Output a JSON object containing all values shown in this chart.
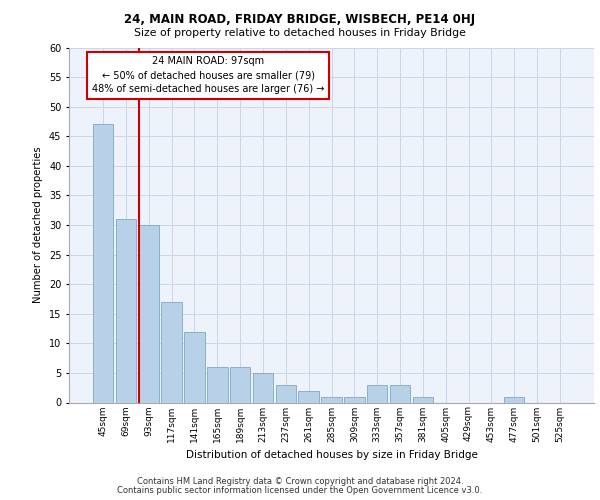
{
  "title1": "24, MAIN ROAD, FRIDAY BRIDGE, WISBECH, PE14 0HJ",
  "title2": "Size of property relative to detached houses in Friday Bridge",
  "xlabel": "Distribution of detached houses by size in Friday Bridge",
  "ylabel": "Number of detached properties",
  "footnote1": "Contains HM Land Registry data © Crown copyright and database right 2024.",
  "footnote2": "Contains public sector information licensed under the Open Government Licence v3.0.",
  "annotation_line1": "24 MAIN ROAD: 97sqm",
  "annotation_line2": "← 50% of detached houses are smaller (79)",
  "annotation_line3": "48% of semi-detached houses are larger (76) →",
  "bins": [
    "45sqm",
    "69sqm",
    "93sqm",
    "117sqm",
    "141sqm",
    "165sqm",
    "189sqm",
    "213sqm",
    "237sqm",
    "261sqm",
    "285sqm",
    "309sqm",
    "333sqm",
    "357sqm",
    "381sqm",
    "405sqm",
    "429sqm",
    "453sqm",
    "477sqm",
    "501sqm",
    "525sqm"
  ],
  "values": [
    47,
    31,
    30,
    17,
    12,
    6,
    6,
    5,
    3,
    2,
    1,
    1,
    3,
    3,
    1,
    0,
    0,
    0,
    1,
    0,
    0
  ],
  "bar_color": "#b8d0e8",
  "bar_edge_color": "#7aaac8",
  "red_line_color": "#cc0000",
  "annotation_box_color": "#ffffff",
  "annotation_box_edge": "#cc0000",
  "grid_color": "#ccd6e8",
  "background_color": "#eef2fa",
  "ylim": [
    0,
    60
  ],
  "yticks": [
    0,
    5,
    10,
    15,
    20,
    25,
    30,
    35,
    40,
    45,
    50,
    55,
    60
  ]
}
